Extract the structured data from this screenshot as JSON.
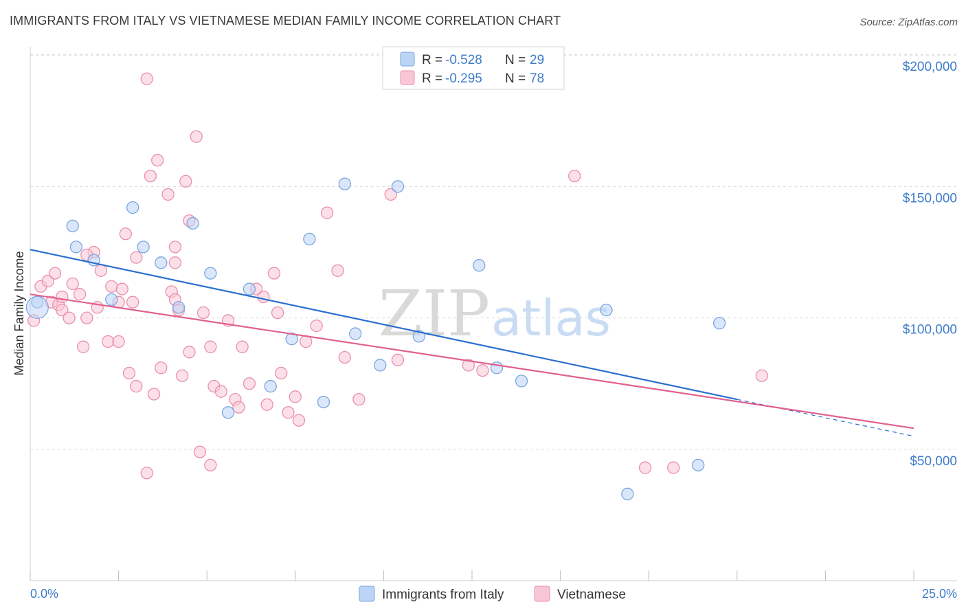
{
  "title": "IMMIGRANTS FROM ITALY VS VIETNAMESE MEDIAN FAMILY INCOME CORRELATION CHART",
  "source": "Source: ZipAtlas.com",
  "watermark": {
    "zip": "ZIP",
    "atlas": "atlas"
  },
  "colors": {
    "italy_fill": "#bcd4f5",
    "italy_stroke": "#7aa6e0",
    "italy_line": "#2a6fcd",
    "viet_fill": "#f9c6d6",
    "viet_stroke": "#ea8fae",
    "viet_line": "#e0608e",
    "tick_text": "#3d7cc9",
    "grid": "#dcdcdc"
  },
  "legend": {
    "italy": {
      "r_label": "R =",
      "r_value": "-0.528",
      "n_label": "N =",
      "n_value": "29"
    },
    "viet": {
      "r_label": "R =",
      "r_value": "-0.295",
      "n_label": "N =",
      "n_value": "78"
    }
  },
  "chart_data": {
    "type": "scatter",
    "xlabel": "",
    "ylabel": "Median Family Income",
    "xlim": [
      0,
      25
    ],
    "ylim": [
      0,
      210000
    ],
    "x_tick_labels": {
      "left": "0.0%",
      "right": "25.0%"
    },
    "y_ticks": [
      {
        "value": 50000,
        "label": "$50,000"
      },
      {
        "value": 100000,
        "label": "$100,000"
      },
      {
        "value": 150000,
        "label": "$150,000"
      },
      {
        "value": 200000,
        "label": "$200,000"
      }
    ],
    "legend_position": "top-center",
    "series": [
      {
        "name": "Immigrants from Italy",
        "points": [
          [
            0.2,
            106000
          ],
          [
            1.2,
            135000
          ],
          [
            1.3,
            127000
          ],
          [
            1.8,
            122000
          ],
          [
            2.3,
            107000
          ],
          [
            2.9,
            142000
          ],
          [
            3.2,
            127000
          ],
          [
            3.7,
            121000
          ],
          [
            4.2,
            104000
          ],
          [
            4.6,
            136000
          ],
          [
            5.1,
            117000
          ],
          [
            6.2,
            111000
          ],
          [
            6.8,
            74000
          ],
          [
            7.4,
            92000
          ],
          [
            7.9,
            130000
          ],
          [
            8.3,
            68000
          ],
          [
            8.9,
            151000
          ],
          [
            9.2,
            94000
          ],
          [
            9.9,
            82000
          ],
          [
            10.4,
            150000
          ],
          [
            11.0,
            93000
          ],
          [
            12.7,
            120000
          ],
          [
            13.2,
            81000
          ],
          [
            13.9,
            76000
          ],
          [
            16.3,
            103000
          ],
          [
            16.9,
            33000
          ],
          [
            18.9,
            44000
          ],
          [
            19.5,
            98000
          ],
          [
            5.6,
            64000
          ]
        ],
        "trend": {
          "x0": 0,
          "y0": 126000,
          "x1": 20,
          "y1": 69000,
          "dash_to_x": 25,
          "dash_to_y": 55000
        }
      },
      {
        "name": "Vietnamese",
        "points": [
          [
            0.1,
            99000
          ],
          [
            0.3,
            112000
          ],
          [
            0.5,
            114000
          ],
          [
            0.6,
            106000
          ],
          [
            0.7,
            117000
          ],
          [
            0.8,
            105000
          ],
          [
            0.9,
            108000
          ],
          [
            1.2,
            113000
          ],
          [
            1.4,
            109000
          ],
          [
            1.6,
            100000
          ],
          [
            1.8,
            125000
          ],
          [
            2.0,
            118000
          ],
          [
            2.3,
            112000
          ],
          [
            2.5,
            106000
          ],
          [
            2.6,
            111000
          ],
          [
            2.9,
            106000
          ],
          [
            3.0,
            123000
          ],
          [
            3.3,
            191000
          ],
          [
            3.4,
            154000
          ],
          [
            3.6,
            160000
          ],
          [
            3.7,
            81000
          ],
          [
            3.9,
            147000
          ],
          [
            4.0,
            110000
          ],
          [
            4.1,
            127000
          ],
          [
            4.3,
            78000
          ],
          [
            4.4,
            152000
          ],
          [
            4.5,
            137000
          ],
          [
            4.7,
            169000
          ],
          [
            4.9,
            102000
          ],
          [
            5.1,
            89000
          ],
          [
            5.2,
            74000
          ],
          [
            5.4,
            72000
          ],
          [
            5.6,
            99000
          ],
          [
            5.8,
            69000
          ],
          [
            6.0,
            89000
          ],
          [
            6.2,
            75000
          ],
          [
            6.4,
            111000
          ],
          [
            6.6,
            108000
          ],
          [
            6.9,
            117000
          ],
          [
            7.1,
            79000
          ],
          [
            7.3,
            64000
          ],
          [
            7.5,
            70000
          ],
          [
            7.6,
            61000
          ],
          [
            7.8,
            91000
          ],
          [
            8.1,
            97000
          ],
          [
            8.4,
            140000
          ],
          [
            8.7,
            118000
          ],
          [
            9.3,
            69000
          ],
          [
            10.2,
            147000
          ],
          [
            10.4,
            84000
          ],
          [
            2.8,
            79000
          ],
          [
            3.0,
            74000
          ],
          [
            3.5,
            71000
          ],
          [
            2.2,
            91000
          ],
          [
            1.5,
            89000
          ],
          [
            0.9,
            103000
          ],
          [
            3.3,
            41000
          ],
          [
            4.8,
            49000
          ],
          [
            5.1,
            44000
          ],
          [
            4.1,
            107000
          ],
          [
            1.9,
            104000
          ],
          [
            2.7,
            132000
          ],
          [
            1.1,
            100000
          ],
          [
            4.2,
            103000
          ],
          [
            5.9,
            66000
          ],
          [
            12.4,
            82000
          ],
          [
            12.8,
            80000
          ],
          [
            15.4,
            154000
          ],
          [
            17.4,
            43000
          ],
          [
            18.2,
            43000
          ],
          [
            20.7,
            78000
          ],
          [
            6.7,
            67000
          ],
          [
            7.0,
            102000
          ],
          [
            4.5,
            87000
          ],
          [
            2.5,
            91000
          ],
          [
            8.9,
            85000
          ],
          [
            1.6,
            124000
          ],
          [
            4.1,
            121000
          ]
        ],
        "trend": {
          "x0": 0,
          "y0": 109000,
          "x1": 25,
          "y1": 58000
        }
      }
    ]
  }
}
